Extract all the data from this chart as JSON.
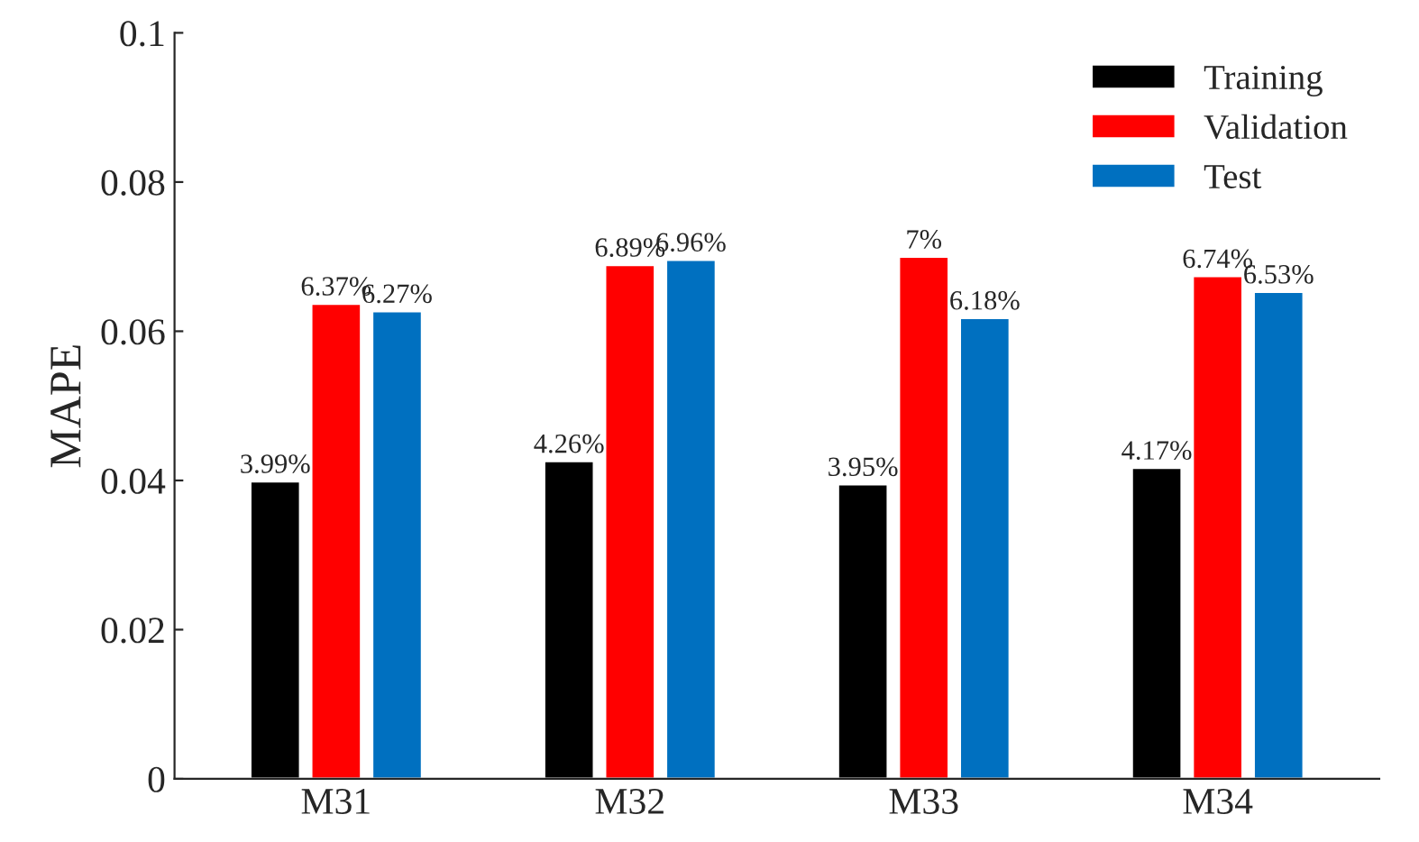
{
  "chart_data": {
    "type": "bar",
    "ylabel": "MAPE",
    "categories": [
      "M31",
      "M32",
      "M33",
      "M34"
    ],
    "series": [
      {
        "name": "Training",
        "color": "#000000",
        "values": [
          0.0399,
          0.0426,
          0.0395,
          0.0417
        ],
        "value_labels": [
          "3.99%",
          "4.26%",
          "3.95%",
          "4.17%"
        ]
      },
      {
        "name": "Validation",
        "color": "#ff0000",
        "values": [
          0.0637,
          0.0689,
          0.07,
          0.0674
        ],
        "value_labels": [
          "6.37%",
          "6.89%",
          "7%",
          "6.74%"
        ]
      },
      {
        "name": "Test",
        "color": "#0070c0",
        "values": [
          0.0627,
          0.0696,
          0.0618,
          0.0653
        ],
        "value_labels": [
          "6.27%",
          "6.96%",
          "6.18%",
          "6.53%"
        ]
      }
    ],
    "ylim": [
      0,
      0.1
    ],
    "yticks": [
      0,
      0.02,
      0.04,
      0.06,
      0.08,
      0.1
    ],
    "legend": "top right",
    "grid": false
  }
}
